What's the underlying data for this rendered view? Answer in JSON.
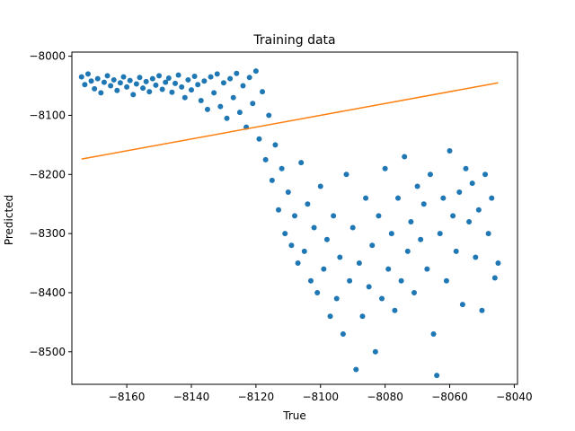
{
  "chart_data": {
    "type": "scatter",
    "title": "Training data",
    "xlabel": "True",
    "ylabel": "Predicted",
    "xlim": [
      -8177,
      -8039
    ],
    "ylim": [
      -8555,
      -7993
    ],
    "xticks": [
      -8180,
      -8160,
      -8140,
      -8120,
      -8100,
      -8080,
      -8060,
      -8040
    ],
    "yticks": [
      -8000,
      -8100,
      -8200,
      -8300,
      -8400,
      -8500
    ],
    "xtick_labels": [
      "−8180",
      "−8160",
      "−8140",
      "−8120",
      "−8100",
      "−8080",
      "−8060",
      "−8040"
    ],
    "ytick_labels": [
      "−8000",
      "−8100",
      "−8200",
      "−8300",
      "−8400",
      "−8500"
    ],
    "grid": false,
    "series": [
      {
        "kind": "scatter",
        "color": "#1f77b4",
        "points": [
          [
            -8174,
            -8035
          ],
          [
            -8173,
            -8048
          ],
          [
            -8172,
            -8030
          ],
          [
            -8171,
            -8042
          ],
          [
            -8170,
            -8055
          ],
          [
            -8169,
            -8038
          ],
          [
            -8168,
            -8062
          ],
          [
            -8167,
            -8044
          ],
          [
            -8166,
            -8033
          ],
          [
            -8165,
            -8050
          ],
          [
            -8164,
            -8040
          ],
          [
            -8163,
            -8058
          ],
          [
            -8162,
            -8045
          ],
          [
            -8161,
            -8035
          ],
          [
            -8160,
            -8052
          ],
          [
            -8159,
            -8041
          ],
          [
            -8158,
            -8065
          ],
          [
            -8157,
            -8047
          ],
          [
            -8156,
            -8036
          ],
          [
            -8155,
            -8054
          ],
          [
            -8154,
            -8043
          ],
          [
            -8153,
            -8060
          ],
          [
            -8152,
            -8038
          ],
          [
            -8151,
            -8049
          ],
          [
            -8150,
            -8033
          ],
          [
            -8149,
            -8056
          ],
          [
            -8148,
            -8044
          ],
          [
            -8147,
            -8037
          ],
          [
            -8146,
            -8061
          ],
          [
            -8145,
            -8046
          ],
          [
            -8144,
            -8032
          ],
          [
            -8143,
            -8052
          ],
          [
            -8142,
            -8070
          ],
          [
            -8141,
            -8040
          ],
          [
            -8140,
            -8057
          ],
          [
            -8139,
            -8034
          ],
          [
            -8138,
            -8048
          ],
          [
            -8137,
            -8075
          ],
          [
            -8136,
            -8042
          ],
          [
            -8135,
            -8090
          ],
          [
            -8134,
            -8035
          ],
          [
            -8133,
            -8062
          ],
          [
            -8132,
            -8030
          ],
          [
            -8131,
            -8085
          ],
          [
            -8130,
            -8045
          ],
          [
            -8129,
            -8105
          ],
          [
            -8128,
            -8038
          ],
          [
            -8127,
            -8070
          ],
          [
            -8126,
            -8029
          ],
          [
            -8125,
            -8095
          ],
          [
            -8124,
            -8050
          ],
          [
            -8123,
            -8120
          ],
          [
            -8122,
            -8036
          ],
          [
            -8121,
            -8080
          ],
          [
            -8120,
            -8025
          ],
          [
            -8119,
            -8140
          ],
          [
            -8118,
            -8060
          ],
          [
            -8117,
            -8175
          ],
          [
            -8116,
            -8100
          ],
          [
            -8115,
            -8210
          ],
          [
            -8114,
            -8150
          ],
          [
            -8113,
            -8260
          ],
          [
            -8112,
            -8190
          ],
          [
            -8111,
            -8300
          ],
          [
            -8110,
            -8230
          ],
          [
            -8109,
            -8320
          ],
          [
            -8108,
            -8270
          ],
          [
            -8107,
            -8350
          ],
          [
            -8106,
            -8180
          ],
          [
            -8105,
            -8330
          ],
          [
            -8104,
            -8250
          ],
          [
            -8103,
            -8380
          ],
          [
            -8102,
            -8290
          ],
          [
            -8101,
            -8400
          ],
          [
            -8100,
            -8220
          ],
          [
            -8099,
            -8360
          ],
          [
            -8098,
            -8310
          ],
          [
            -8097,
            -8440
          ],
          [
            -8096,
            -8270
          ],
          [
            -8095,
            -8410
          ],
          [
            -8094,
            -8340
          ],
          [
            -8093,
            -8470
          ],
          [
            -8092,
            -8200
          ],
          [
            -8091,
            -8380
          ],
          [
            -8090,
            -8290
          ],
          [
            -8089,
            -8530
          ],
          [
            -8088,
            -8350
          ],
          [
            -8087,
            -8440
          ],
          [
            -8086,
            -8240
          ],
          [
            -8085,
            -8390
          ],
          [
            -8084,
            -8320
          ],
          [
            -8083,
            -8500
          ],
          [
            -8082,
            -8270
          ],
          [
            -8081,
            -8410
          ],
          [
            -8080,
            -8190
          ],
          [
            -8079,
            -8360
          ],
          [
            -8078,
            -8300
          ],
          [
            -8077,
            -8430
          ],
          [
            -8076,
            -8240
          ],
          [
            -8075,
            -8380
          ],
          [
            -8074,
            -8170
          ],
          [
            -8073,
            -8330
          ],
          [
            -8072,
            -8280
          ],
          [
            -8071,
            -8400
          ],
          [
            -8070,
            -8220
          ],
          [
            -8069,
            -8310
          ],
          [
            -8068,
            -8250
          ],
          [
            -8067,
            -8360
          ],
          [
            -8066,
            -8200
          ],
          [
            -8065,
            -8470
          ],
          [
            -8064,
            -8540
          ],
          [
            -8063,
            -8300
          ],
          [
            -8062,
            -8240
          ],
          [
            -8061,
            -8380
          ],
          [
            -8060,
            -8160
          ],
          [
            -8059,
            -8270
          ],
          [
            -8058,
            -8330
          ],
          [
            -8057,
            -8230
          ],
          [
            -8056,
            -8420
          ],
          [
            -8055,
            -8190
          ],
          [
            -8054,
            -8280
          ],
          [
            -8053,
            -8215
          ],
          [
            -8052,
            -8340
          ],
          [
            -8051,
            -8260
          ],
          [
            -8050,
            -8430
          ],
          [
            -8049,
            -8200
          ],
          [
            -8048,
            -8300
          ],
          [
            -8047,
            -8240
          ],
          [
            -8046,
            -8375
          ],
          [
            -8045,
            -8350
          ]
        ]
      },
      {
        "kind": "line",
        "color": "#ff7f0e",
        "x": [
          -8174,
          -8045
        ],
        "y": [
          -8174,
          -8045
        ]
      }
    ]
  }
}
